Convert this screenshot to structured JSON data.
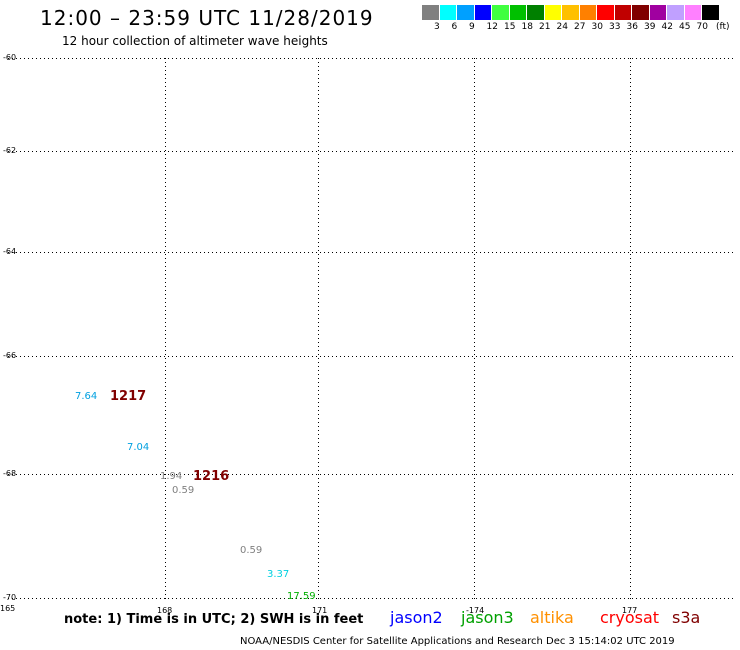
{
  "header": {
    "title": "12:00 – 23:59 UTC 11/28/2019",
    "subtitle": "12 hour collection of altimeter wave heights"
  },
  "colorbar": {
    "colors": [
      "#808080",
      "#00ffff",
      "#00a0ff",
      "#0000ff",
      "#40ff40",
      "#00c000",
      "#008000",
      "#ffff00",
      "#ffc000",
      "#ff8000",
      "#ff0000",
      "#c00000",
      "#800000",
      "#a000a0",
      "#c0a0ff",
      "#ff80ff",
      "#000000"
    ],
    "labels": [
      "3",
      "6",
      "9",
      "12",
      "15",
      "18",
      "21",
      "24",
      "27",
      "30",
      "33",
      "36",
      "39",
      "42",
      "45",
      "70"
    ],
    "unit": "(ft)"
  },
  "map": {
    "lat_labels": [
      "-60",
      "-62",
      "-64",
      "-66",
      "-68",
      "-70"
    ],
    "lon_labels": [
      "165",
      "168",
      "171",
      "-174",
      "177"
    ],
    "observations": [
      {
        "text": "7.64",
        "color": "#00a0e0"
      },
      {
        "text": "7.04",
        "color": "#00a0e0"
      },
      {
        "text": "1.94",
        "color": "#808080"
      },
      {
        "text": "0.59",
        "color": "#808080"
      },
      {
        "text": "0.59",
        "color": "#808080"
      },
      {
        "text": "3.37",
        "color": "#00d0e0"
      },
      {
        "text": "17.59",
        "color": "#00b000"
      }
    ],
    "pass_numbers": [
      "1217",
      "1216"
    ]
  },
  "legend": {
    "note": "note: 1) Time is in UTC; 2) SWH is in feet",
    "satellites": [
      {
        "name": "jason2",
        "color": "#0000ff"
      },
      {
        "name": "jason3",
        "color": "#00a000"
      },
      {
        "name": "altika",
        "color": "#ff9000"
      },
      {
        "name": "cryosat",
        "color": "#ff0000"
      },
      {
        "name": "s3a",
        "color": "#800000"
      }
    ]
  },
  "footer": "NOAA/NESDIS Center for Satellite Applications and Research   Dec  3 15:14:02 UTC 2019"
}
